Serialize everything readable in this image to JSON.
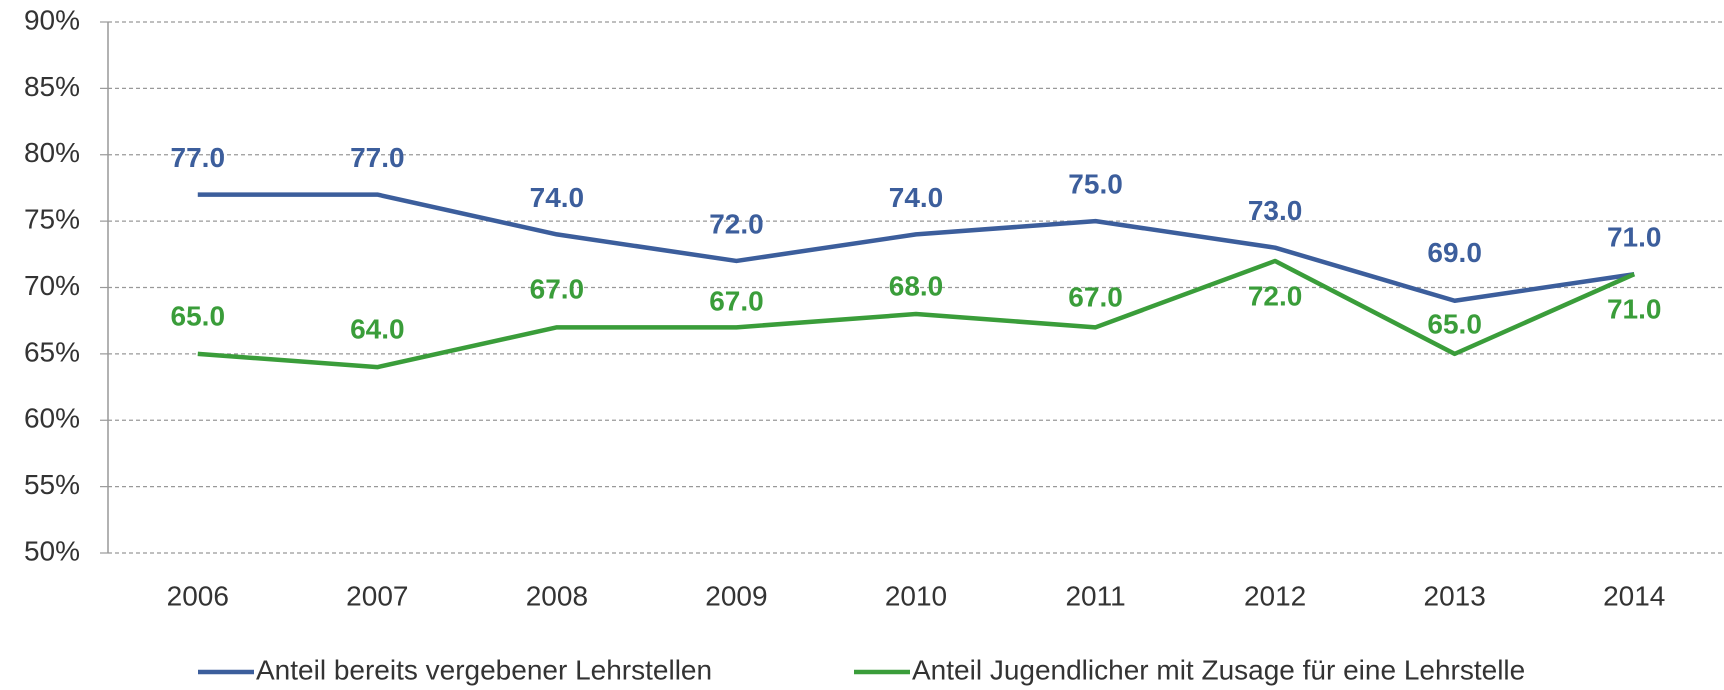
{
  "chart_data": {
    "type": "line",
    "categories": [
      "2006",
      "2007",
      "2008",
      "2009",
      "2010",
      "2011",
      "2012",
      "2013",
      "2014"
    ],
    "series": [
      {
        "name": "Anteil bereits vergebener Lehrstellen",
        "color": "#3c5e9c",
        "values": [
          77,
          77,
          74,
          72,
          74,
          75,
          73,
          69,
          71
        ],
        "value_labels": [
          "77.0",
          "77.0",
          "74.0",
          "72.0",
          "74.0",
          "75.0",
          "73.0",
          "69.0",
          "71.0"
        ]
      },
      {
        "name": "Anteil Jugendlicher mit Zusage für eine Lehrstelle",
        "color": "#3a9d3a",
        "values": [
          65,
          64,
          67,
          67,
          68,
          67,
          72,
          65,
          71
        ],
        "value_labels": [
          "65.0",
          "64.0",
          "67.0",
          "67.0",
          "68.0",
          "67.0",
          "72.0",
          "65.0",
          "71.0"
        ]
      }
    ],
    "ylim": [
      50,
      90
    ],
    "yticks": [
      {
        "value": 50,
        "label": "50%"
      },
      {
        "value": 55,
        "label": "55%"
      },
      {
        "value": 60,
        "label": "60%"
      },
      {
        "value": 65,
        "label": "65%"
      },
      {
        "value": 70,
        "label": "70%"
      },
      {
        "value": 75,
        "label": "75%"
      },
      {
        "value": 80,
        "label": "80%"
      },
      {
        "value": 85,
        "label": "85%"
      },
      {
        "value": 90,
        "label": "90%"
      }
    ],
    "grid": true,
    "legend": "bottom"
  }
}
